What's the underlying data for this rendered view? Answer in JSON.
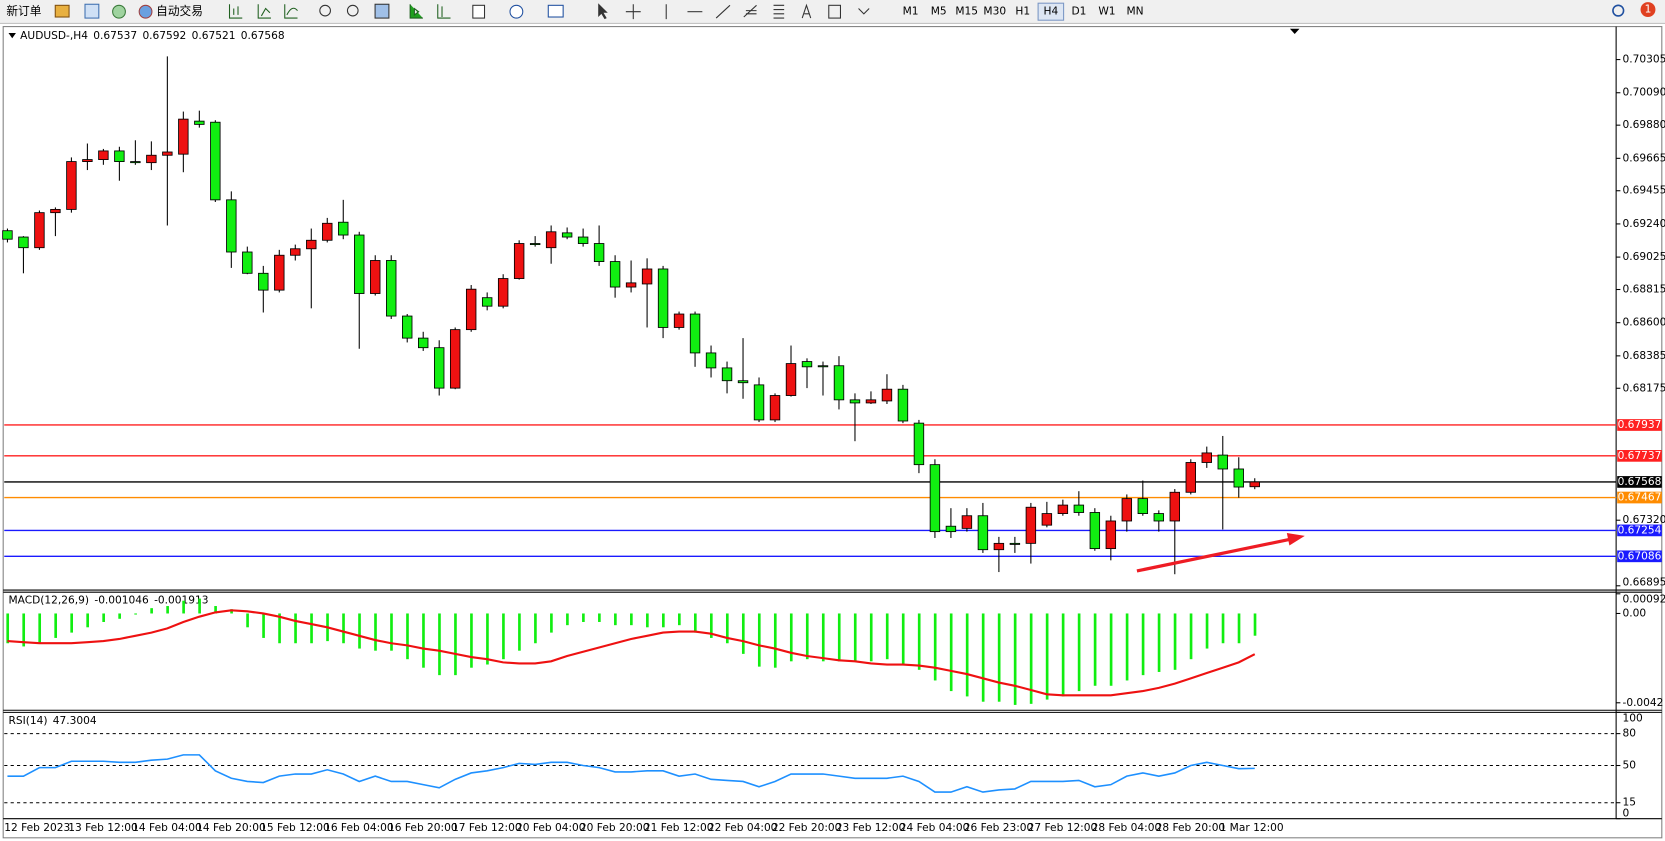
{
  "toolbar": {
    "new_order": "新订单",
    "auto_trading": "自动交易",
    "timeframes": [
      "M1",
      "M5",
      "M15",
      "M30",
      "H1",
      "H4",
      "D1",
      "W1",
      "MN"
    ],
    "active_timeframe": "H4",
    "notifications": 1
  },
  "chart_data": [
    {
      "type": "candlestick",
      "symbol": "AUDUSD-,H4",
      "categories": [
        "12 Feb 2023",
        null,
        null,
        null,
        "13 Feb 12:00",
        null,
        null,
        null,
        "14 Feb 04:00",
        null,
        null,
        null,
        "14 Feb 20:00",
        null,
        null,
        null,
        "15 Feb 12:00",
        null,
        null,
        null,
        "16 Feb 04:00",
        null,
        null,
        null,
        "16 Feb 20:00",
        null,
        null,
        null,
        "17 Feb 12:00",
        null,
        null,
        null,
        "20 Feb 04:00",
        null,
        null,
        null,
        "20 Feb 20:00",
        null,
        null,
        null,
        "21 Feb 12:00",
        null,
        null,
        null,
        "22 Feb 04:00",
        null,
        null,
        null,
        "22 Feb 20:00",
        null,
        null,
        null,
        "23 Feb 12:00",
        null,
        null,
        null,
        "24 Feb 04:00",
        null,
        null,
        null,
        "26 Feb 23:00",
        null,
        null,
        null,
        "27 Feb 12:00",
        null,
        null,
        null,
        "28 Feb 04:00",
        null,
        null,
        null,
        "28 Feb 20:00",
        null,
        null,
        null,
        "1 Mar 12:00",
        null,
        null
      ],
      "open": [
        0.69196,
        0.69155,
        0.69086,
        0.69313,
        0.69334,
        0.69644,
        0.69657,
        0.69713,
        0.69644,
        0.69637,
        0.69685,
        0.69692,
        0.69906,
        0.69899,
        0.69396,
        0.69058,
        0.6892,
        0.68811,
        0.69037,
        0.69079,
        0.69134,
        0.69251,
        0.69168,
        0.68789,
        0.69003,
        0.68643,
        0.685,
        0.68438,
        0.68176,
        0.68555,
        0.68762,
        0.68707,
        0.68886,
        0.69113,
        0.69086,
        0.69182,
        0.69155,
        0.69113,
        0.68996,
        0.68831,
        0.68851,
        0.68948,
        0.68569,
        0.68656,
        0.68404,
        0.68307,
        0.68224,
        0.68197,
        0.6797,
        0.68128,
        0.68348,
        0.68321,
        0.68321,
        0.681,
        0.6808,
        0.68093,
        0.68169,
        0.67949,
        0.6768,
        0.67281,
        0.67267,
        0.67349,
        0.67129,
        0.6717,
        0.6717,
        0.67288,
        0.67363,
        0.67418,
        0.6737,
        0.67136,
        0.67315,
        0.6746,
        0.67363,
        0.67315,
        0.67501,
        0.67694,
        0.67742,
        0.67652,
        0.67537
      ],
      "high": [
        0.6921,
        0.69161,
        0.69327,
        0.69347,
        0.69671,
        0.69761,
        0.69726,
        0.6974,
        0.69782,
        0.69775,
        0.70326,
        0.69968,
        0.69974,
        0.69912,
        0.69451,
        0.69093,
        0.68968,
        0.69072,
        0.69106,
        0.6921,
        0.69279,
        0.69396,
        0.69189,
        0.69037,
        0.69037,
        0.68656,
        0.68541,
        0.68486,
        0.68569,
        0.68844,
        0.68796,
        0.68914,
        0.69134,
        0.69161,
        0.6923,
        0.69217,
        0.6921,
        0.6923,
        0.69037,
        0.69003,
        0.69017,
        0.68968,
        0.68672,
        0.68672,
        0.68452,
        0.68348,
        0.685,
        0.68245,
        0.68142,
        0.68452,
        0.68369,
        0.68348,
        0.68383,
        0.68142,
        0.68155,
        0.68266,
        0.68197,
        0.6797,
        0.67715,
        0.67398,
        0.67398,
        0.67432,
        0.67212,
        0.67212,
        0.67432,
        0.67439,
        0.67453,
        0.67508,
        0.67398,
        0.67349,
        0.67487,
        0.67577,
        0.67384,
        0.67522,
        0.67715,
        0.67797,
        0.67866,
        0.67728,
        0.67592
      ],
      "low": [
        0.6912,
        0.6892,
        0.69072,
        0.69161,
        0.69313,
        0.69589,
        0.69623,
        0.6952,
        0.69623,
        0.69589,
        0.6923,
        0.69575,
        0.69864,
        0.69382,
        0.68955,
        0.68914,
        0.68666,
        0.68796,
        0.69003,
        0.68693,
        0.6912,
        0.69141,
        0.68431,
        0.68776,
        0.68624,
        0.68472,
        0.68417,
        0.68128,
        0.68169,
        0.68541,
        0.6868,
        0.68693,
        0.68879,
        0.69093,
        0.68982,
        0.69141,
        0.69093,
        0.68968,
        0.68762,
        0.68796,
        0.68569,
        0.685,
        0.68555,
        0.68314,
        0.68245,
        0.68142,
        0.68107,
        0.67956,
        0.67956,
        0.68121,
        0.68176,
        0.68128,
        0.68038,
        0.67832,
        0.68073,
        0.68073,
        0.67949,
        0.67625,
        0.67205,
        0.67205,
        0.67246,
        0.67108,
        0.66984,
        0.67108,
        0.67039,
        0.67274,
        0.67349,
        0.67349,
        0.67122,
        0.6706,
        0.67246,
        0.67349,
        0.67246,
        0.6697,
        0.67487,
        0.67659,
        0.6726,
        0.67466,
        0.67521
      ],
      "close": [
        0.69141,
        0.69086,
        0.69313,
        0.69334,
        0.69644,
        0.69657,
        0.69713,
        0.69644,
        0.69637,
        0.69685,
        0.69706,
        0.69919,
        0.69885,
        0.69396,
        0.69058,
        0.6892,
        0.68811,
        0.69037,
        0.69079,
        0.69134,
        0.69244,
        0.69168,
        0.68789,
        0.69003,
        0.68643,
        0.685,
        0.68438,
        0.68176,
        0.68555,
        0.68817,
        0.68707,
        0.68886,
        0.69113,
        0.6911,
        0.69189,
        0.69155,
        0.69113,
        0.68996,
        0.68831,
        0.68858,
        0.68948,
        0.68569,
        0.68656,
        0.68404,
        0.68307,
        0.68224,
        0.68211,
        0.6797,
        0.68128,
        0.68335,
        0.68314,
        0.68318,
        0.681,
        0.6808,
        0.681,
        0.68169,
        0.67963,
        0.6768,
        0.67246,
        0.67246,
        0.67349,
        0.67129,
        0.6717,
        0.67167,
        0.67404,
        0.67363,
        0.67418,
        0.6737,
        0.67136,
        0.67315,
        0.6746,
        0.67363,
        0.67315,
        0.67501,
        0.67694,
        0.67756,
        0.67652,
        0.67535,
        0.67568
      ],
      "up_color": "#ee1111",
      "down_color": "#11ee11",
      "ylim": [
        0.66881,
        0.70505
      ],
      "yticks": [
        0.70305,
        {
          "value": 0.7009,
          "label": "0.70090"
        },
        {
          "value": 0.6988,
          "label": "0.69880"
        },
        0.69665,
        0.69455,
        {
          "value": 0.6924,
          "label": "0.69240"
        },
        0.69025,
        0.68815,
        {
          "value": 0.686,
          "label": "0.68600"
        },
        0.68385,
        0.68175,
        {
          "value": 0.6732,
          "label": "0.67320"
        },
        0.66895
      ],
      "hlines": [
        {
          "value": 0.67937,
          "color": "#ff2020"
        },
        {
          "value": 0.67737,
          "color": "#ff2020"
        },
        {
          "value": 0.67568,
          "color": "#000000"
        },
        {
          "value": 0.67467,
          "color": "#ff8c00"
        },
        {
          "value": 0.67254,
          "color": "#1a1aff"
        },
        {
          "value": 0.67086,
          "color": "#1a1aff"
        }
      ]
    },
    {
      "type": "macd",
      "label": "MACD(12,26,9)",
      "histogram": {
        "color": "#11ee11",
        "values": [
          -0.0014,
          -0.00155,
          -0.0014,
          -0.00115,
          -0.0009,
          -0.00065,
          -0.0004,
          -0.00025,
          -5e-05,
          0.00025,
          0.00035,
          0.0006,
          0.0007,
          0.00035,
          0.0002,
          -0.00065,
          -0.00115,
          -0.0014,
          -0.0014,
          -0.0014,
          -0.0013,
          -0.0014,
          -0.00165,
          -0.00175,
          -0.00175,
          -0.00215,
          -0.00255,
          -0.0029,
          -0.0029,
          -0.00255,
          -0.0024,
          -0.00215,
          -0.00175,
          -0.0014,
          -0.0009,
          -0.00055,
          -0.0004,
          -0.0004,
          -0.00055,
          -0.00055,
          -0.00065,
          -0.00065,
          -0.00055,
          -0.0009,
          -0.00115,
          -0.0014,
          -0.0019,
          -0.0025,
          -0.00255,
          -0.00225,
          -0.00215,
          -0.00225,
          -0.00225,
          -0.00225,
          -0.00225,
          -0.00215,
          -0.0024,
          -0.00265,
          -0.00315,
          -0.00365,
          -0.0039,
          -0.00415,
          -0.00415,
          -0.0043,
          -0.00425,
          -0.00405,
          -0.0039,
          -0.00365,
          -0.0034,
          -0.0034,
          -0.00315,
          -0.0029,
          -0.00275,
          -0.00265,
          -0.00215,
          -0.00165,
          -0.0014,
          -0.0014,
          -0.001046
        ]
      },
      "signal": {
        "color": "#ee1111",
        "values": [
          -0.0013,
          -0.00135,
          -0.0014,
          -0.0014,
          -0.0014,
          -0.00135,
          -0.0013,
          -0.0012,
          -0.00105,
          -0.0009,
          -0.0007,
          -0.0004,
          -0.00015,
          5e-05,
          0.00015,
          0.0001,
          0,
          -0.00015,
          -0.00035,
          -0.0005,
          -0.00065,
          -0.00085,
          -0.00105,
          -0.00125,
          -0.0014,
          -0.0015,
          -0.00165,
          -0.00175,
          -0.0019,
          -0.00205,
          -0.00215,
          -0.0023,
          -0.00235,
          -0.00235,
          -0.00225,
          -0.002,
          -0.0018,
          -0.0016,
          -0.0014,
          -0.0012,
          -0.00105,
          -0.0009,
          -0.00085,
          -0.00085,
          -0.00095,
          -0.00115,
          -0.0013,
          -0.0015,
          -0.00165,
          -0.00185,
          -0.002,
          -0.0021,
          -0.0022,
          -0.00225,
          -0.00235,
          -0.0024,
          -0.0024,
          -0.00245,
          -0.00255,
          -0.0027,
          -0.00285,
          -0.00305,
          -0.00325,
          -0.0034,
          -0.0036,
          -0.0038,
          -0.00385,
          -0.00385,
          -0.00385,
          -0.00385,
          -0.00375,
          -0.00365,
          -0.0035,
          -0.0033,
          -0.00305,
          -0.0028,
          -0.00255,
          -0.0023,
          -0.001913
        ]
      },
      "ylim": [
        -0.0045,
        0.00095
      ],
      "yticks": [
        0.000925,
        {
          "value": 0,
          "label": "0.00"
        },
        -0.0042
      ]
    },
    {
      "type": "rsi",
      "label": "RSI(14)",
      "color": "#1e90ff",
      "values": [
        40,
        40,
        48,
        48,
        54,
        54,
        54,
        53,
        53,
        55,
        56,
        60,
        60,
        45,
        38,
        35,
        34,
        40,
        42,
        42,
        46,
        42,
        35,
        40,
        35,
        35,
        32,
        29,
        37,
        43,
        45,
        48,
        52,
        51,
        53,
        53,
        50,
        48,
        44,
        44,
        45,
        45,
        40,
        42,
        37,
        36,
        35,
        30,
        35,
        42,
        42,
        42,
        40,
        38,
        38,
        38,
        40,
        35,
        25,
        25,
        30,
        25,
        27,
        28,
        35,
        35,
        35,
        36,
        30,
        32,
        40,
        43,
        40,
        43,
        50,
        53,
        50,
        47,
        47.3004
      ],
      "ylim": [
        0,
        100
      ],
      "yticks": [
        100,
        80,
        50,
        15,
        0
      ],
      "levels": [
        80,
        50,
        15
      ]
    }
  ]
}
